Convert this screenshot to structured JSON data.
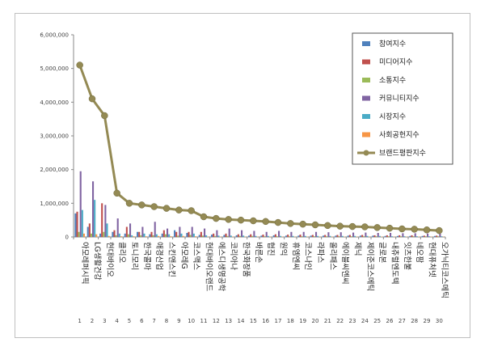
{
  "chart_data": {
    "type": "bar+line",
    "title": "",
    "xlabel": "",
    "ylabel": "",
    "ylim": [
      0,
      6000000
    ],
    "yticks": [
      0,
      1000000,
      2000000,
      3000000,
      4000000,
      5000000,
      6000000
    ],
    "ytick_labels": [
      "0",
      "1,000,000",
      "2,000,000",
      "3,000,000",
      "4,000,000",
      "5,000,000",
      "6,000,000"
    ],
    "legend_position": "top-right",
    "grid": false,
    "ranks": [
      "1",
      "2",
      "3",
      "4",
      "5",
      "6",
      "7",
      "8",
      "9",
      "10",
      "11",
      "12",
      "13",
      "14",
      "15",
      "16",
      "17",
      "18",
      "19",
      "20",
      "21",
      "22",
      "23",
      "24",
      "25",
      "26",
      "27",
      "28",
      "29",
      "30"
    ],
    "categories": [
      "아모레퍼시픽",
      "LG생활건강",
      "현대바이오",
      "클리오",
      "토니모리",
      "한국콜마",
      "애경산업",
      "스킨앤스킨",
      "아모레G",
      "코스맥스",
      "현대바이오랜드",
      "에스디생명공학",
      "코리아나",
      "한국화장품",
      "바른손",
      "협진",
      "원익",
      "휴엠엔씨",
      "코스나인",
      "라파스",
      "올리패스",
      "에이블씨엔씨",
      "제닉",
      "제이준코스메틱",
      "글로본",
      "내츄럴엔도텍",
      "잇츠한불",
      "네오팜",
      "현대퓨처넷",
      "오가닉티코스메틱"
    ],
    "series": [
      {
        "name": "참여지수",
        "color": "#4f81bd",
        "type": "bar",
        "values": [
          700000,
          300000,
          100000,
          150000,
          100000,
          150000,
          80000,
          100000,
          200000,
          120000,
          60000,
          70000,
          60000,
          50000,
          40000,
          40000,
          50000,
          40000,
          40000,
          40000,
          40000,
          40000,
          40000,
          40000,
          40000,
          30000,
          30000,
          30000,
          30000,
          30000
        ]
      },
      {
        "name": "미디어지수",
        "color": "#c0504d",
        "type": "bar",
        "values": [
          750000,
          400000,
          1000000,
          200000,
          300000,
          150000,
          150000,
          200000,
          150000,
          150000,
          150000,
          100000,
          100000,
          80000,
          80000,
          70000,
          80000,
          70000,
          70000,
          60000,
          60000,
          60000,
          60000,
          60000,
          50000,
          50000,
          50000,
          50000,
          40000,
          40000
        ]
      },
      {
        "name": "소통지수",
        "color": "#9bbb59",
        "type": "bar",
        "values": [
          150000,
          100000,
          150000,
          50000,
          80000,
          50000,
          50000,
          80000,
          40000,
          60000,
          40000,
          30000,
          30000,
          30000,
          30000,
          20000,
          20000,
          20000,
          20000,
          20000,
          20000,
          20000,
          20000,
          20000,
          20000,
          20000,
          20000,
          20000,
          20000,
          20000
        ]
      },
      {
        "name": "커뮤니티지수",
        "color": "#8064a2",
        "type": "bar",
        "values": [
          1950000,
          1650000,
          950000,
          550000,
          400000,
          300000,
          450000,
          250000,
          300000,
          300000,
          250000,
          200000,
          250000,
          200000,
          180000,
          150000,
          180000,
          150000,
          150000,
          150000,
          140000,
          140000,
          130000,
          130000,
          120000,
          120000,
          110000,
          110000,
          100000,
          100000
        ]
      },
      {
        "name": "시장지수",
        "color": "#4bacc6",
        "type": "bar",
        "values": [
          800000,
          1100000,
          400000,
          100000,
          50000,
          100000,
          80000,
          80000,
          100000,
          100000,
          50000,
          40000,
          40000,
          40000,
          30000,
          30000,
          30000,
          30000,
          30000,
          30000,
          30000,
          30000,
          30000,
          30000,
          30000,
          20000,
          20000,
          20000,
          20000,
          20000
        ]
      },
      {
        "name": "사회공헌지수",
        "color": "#f79646",
        "type": "bar",
        "values": [
          100000,
          80000,
          30000,
          20000,
          20000,
          20000,
          30000,
          20000,
          30000,
          20000,
          10000,
          10000,
          10000,
          10000,
          10000,
          10000,
          10000,
          10000,
          10000,
          10000,
          10000,
          10000,
          10000,
          10000,
          10000,
          10000,
          10000,
          10000,
          10000,
          10000
        ]
      },
      {
        "name": "브랜드평판지수",
        "color": "#948a54",
        "type": "line",
        "values": [
          5100000,
          4100000,
          3600000,
          1300000,
          1000000,
          950000,
          900000,
          850000,
          800000,
          780000,
          600000,
          550000,
          520000,
          500000,
          480000,
          460000,
          430000,
          400000,
          380000,
          360000,
          340000,
          320000,
          310000,
          300000,
          280000,
          260000,
          240000,
          230000,
          210000,
          190000
        ]
      }
    ]
  }
}
